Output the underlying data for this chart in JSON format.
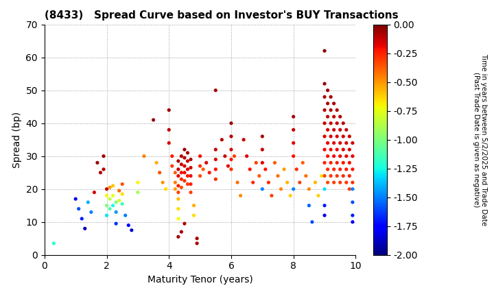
{
  "title": "(8433)   Spread Curve based on Investor's BUY Transactions",
  "xlabel": "Maturity Tenor (years)",
  "ylabel": "Spread (bp)",
  "xlim": [
    0,
    10
  ],
  "ylim": [
    0,
    70
  ],
  "xticks": [
    0,
    2,
    4,
    6,
    8,
    10
  ],
  "yticks": [
    0,
    10,
    20,
    30,
    40,
    50,
    60,
    70
  ],
  "cbar_min": -2.0,
  "cbar_max": 0.0,
  "cbar_ticks": [
    0.0,
    -0.25,
    -0.5,
    -0.75,
    -1.0,
    -1.25,
    -1.5,
    -1.75,
    -2.0
  ],
  "cbar_label": "Time in years between 5/2/2025 and Trade Date\n(Past Trade Date is given as negative)",
  "points": [
    [
      0.3,
      3.5,
      -1.2
    ],
    [
      1.0,
      17.0,
      -1.8
    ],
    [
      1.1,
      14.0,
      -1.6
    ],
    [
      1.2,
      11.0,
      -1.7
    ],
    [
      1.3,
      8.0,
      -1.9
    ],
    [
      1.4,
      16.0,
      -1.4
    ],
    [
      1.5,
      13.0,
      -1.5
    ],
    [
      1.6,
      19.0,
      -0.15
    ],
    [
      1.7,
      28.0,
      -0.05
    ],
    [
      1.8,
      25.0,
      -0.08
    ],
    [
      1.9,
      30.0,
      -0.05
    ],
    [
      1.9,
      26.0,
      -0.1
    ],
    [
      2.0,
      20.0,
      -0.12
    ],
    [
      2.0,
      18.0,
      -0.7
    ],
    [
      2.0,
      15.0,
      -1.0
    ],
    [
      2.0,
      12.0,
      -1.3
    ],
    [
      2.1,
      20.5,
      -0.5
    ],
    [
      2.1,
      17.0,
      -0.85
    ],
    [
      2.1,
      14.0,
      -1.1
    ],
    [
      2.2,
      21.0,
      -0.6
    ],
    [
      2.2,
      18.0,
      -0.75
    ],
    [
      2.2,
      15.0,
      -1.25
    ],
    [
      2.3,
      16.0,
      -1.0
    ],
    [
      2.3,
      13.0,
      -1.45
    ],
    [
      2.3,
      9.5,
      -1.65
    ],
    [
      2.4,
      19.5,
      -0.4
    ],
    [
      2.4,
      16.5,
      -0.8
    ],
    [
      2.5,
      21.5,
      -0.35
    ],
    [
      2.5,
      18.5,
      -0.65
    ],
    [
      2.5,
      15.5,
      -1.15
    ],
    [
      2.6,
      12.0,
      -1.5
    ],
    [
      2.7,
      9.0,
      -1.75
    ],
    [
      2.8,
      7.5,
      -1.85
    ],
    [
      3.0,
      22.0,
      -0.7
    ],
    [
      3.0,
      19.0,
      -0.9
    ],
    [
      3.2,
      30.0,
      -0.45
    ],
    [
      3.5,
      41.0,
      -0.05
    ],
    [
      3.6,
      28.0,
      -0.55
    ],
    [
      3.7,
      25.0,
      -0.35
    ],
    [
      3.8,
      22.0,
      -0.5
    ],
    [
      3.9,
      20.0,
      -0.65
    ],
    [
      4.0,
      44.0,
      -0.05
    ],
    [
      4.0,
      38.0,
      -0.1
    ],
    [
      4.0,
      34.0,
      -0.15
    ],
    [
      4.1,
      30.0,
      -0.22
    ],
    [
      4.1,
      27.0,
      -0.3
    ],
    [
      4.2,
      25.0,
      -0.38
    ],
    [
      4.2,
      22.0,
      -0.45
    ],
    [
      4.2,
      20.0,
      -0.52
    ],
    [
      4.3,
      28.5,
      -0.07
    ],
    [
      4.3,
      26.0,
      -0.12
    ],
    [
      4.3,
      24.0,
      -0.18
    ],
    [
      4.3,
      21.0,
      -0.25
    ],
    [
      4.3,
      19.0,
      -0.32
    ],
    [
      4.3,
      17.0,
      -0.58
    ],
    [
      4.3,
      14.0,
      -0.65
    ],
    [
      4.3,
      11.0,
      -0.72
    ],
    [
      4.3,
      5.5,
      -0.07
    ],
    [
      4.4,
      30.0,
      -0.08
    ],
    [
      4.4,
      27.5,
      -0.14
    ],
    [
      4.4,
      25.0,
      -0.2
    ],
    [
      4.4,
      23.0,
      -0.27
    ],
    [
      4.4,
      20.5,
      -0.35
    ],
    [
      4.4,
      7.0,
      -0.06
    ],
    [
      4.5,
      32.0,
      -0.06
    ],
    [
      4.5,
      29.5,
      -0.1
    ],
    [
      4.5,
      27.0,
      -0.15
    ],
    [
      4.5,
      25.0,
      -0.2
    ],
    [
      4.5,
      22.5,
      -0.28
    ],
    [
      4.5,
      9.5,
      -0.08
    ],
    [
      4.6,
      31.0,
      -0.07
    ],
    [
      4.6,
      28.5,
      -0.12
    ],
    [
      4.6,
      26.0,
      -0.17
    ],
    [
      4.6,
      24.0,
      -0.23
    ],
    [
      4.6,
      21.5,
      -0.3
    ],
    [
      4.7,
      29.0,
      -0.09
    ],
    [
      4.7,
      26.5,
      -0.14
    ],
    [
      4.7,
      24.0,
      -0.19
    ],
    [
      4.7,
      21.5,
      -0.25
    ],
    [
      4.7,
      19.0,
      -0.32
    ],
    [
      4.8,
      15.0,
      -0.55
    ],
    [
      4.8,
      12.0,
      -0.65
    ],
    [
      4.9,
      5.0,
      -0.07
    ],
    [
      4.9,
      3.5,
      -0.08
    ],
    [
      5.0,
      30.0,
      -0.2
    ],
    [
      5.0,
      27.0,
      -0.27
    ],
    [
      5.0,
      24.0,
      -0.33
    ],
    [
      5.1,
      26.0,
      -0.38
    ],
    [
      5.2,
      28.0,
      -0.17
    ],
    [
      5.3,
      25.0,
      -0.22
    ],
    [
      5.5,
      32.0,
      -0.12
    ],
    [
      5.5,
      29.0,
      -0.17
    ],
    [
      5.5,
      26.0,
      -0.22
    ],
    [
      5.5,
      23.0,
      -0.28
    ],
    [
      5.5,
      50.0,
      -0.05
    ],
    [
      5.7,
      35.0,
      -0.1
    ],
    [
      5.8,
      30.0,
      -0.14
    ],
    [
      5.9,
      27.0,
      -0.18
    ],
    [
      6.0,
      40.0,
      -0.06
    ],
    [
      6.0,
      36.0,
      -0.1
    ],
    [
      6.0,
      32.0,
      -0.16
    ],
    [
      6.0,
      29.0,
      -0.22
    ],
    [
      6.0,
      26.0,
      -0.28
    ],
    [
      6.1,
      30.0,
      -0.32
    ],
    [
      6.2,
      22.0,
      -0.42
    ],
    [
      6.3,
      18.0,
      -0.48
    ],
    [
      6.4,
      35.0,
      -0.12
    ],
    [
      6.5,
      30.0,
      -0.17
    ],
    [
      6.6,
      26.0,
      -0.22
    ],
    [
      6.7,
      22.0,
      -0.27
    ],
    [
      6.8,
      28.0,
      -0.32
    ],
    [
      6.9,
      24.0,
      -0.37
    ],
    [
      7.0,
      36.0,
      -0.07
    ],
    [
      7.0,
      32.0,
      -0.12
    ],
    [
      7.0,
      28.0,
      -0.17
    ],
    [
      7.0,
      20.0,
      -1.5
    ],
    [
      7.1,
      26.0,
      -0.22
    ],
    [
      7.2,
      22.0,
      -0.27
    ],
    [
      7.3,
      18.0,
      -0.32
    ],
    [
      7.4,
      28.0,
      -0.37
    ],
    [
      7.5,
      24.0,
      -0.42
    ],
    [
      7.6,
      20.0,
      -0.47
    ],
    [
      7.7,
      26.0,
      -0.52
    ],
    [
      7.8,
      22.0,
      -0.57
    ],
    [
      7.9,
      18.0,
      -0.62
    ],
    [
      8.0,
      42.0,
      -0.07
    ],
    [
      8.0,
      38.0,
      -0.12
    ],
    [
      8.0,
      34.0,
      -0.17
    ],
    [
      8.0,
      30.0,
      -0.22
    ],
    [
      8.0,
      20.0,
      -1.5
    ],
    [
      8.1,
      26.0,
      -0.27
    ],
    [
      8.2,
      22.0,
      -0.32
    ],
    [
      8.3,
      28.0,
      -0.37
    ],
    [
      8.4,
      24.0,
      -0.42
    ],
    [
      8.5,
      20.0,
      -0.47
    ],
    [
      8.5,
      15.0,
      -1.55
    ],
    [
      8.6,
      10.0,
      -1.6
    ],
    [
      8.7,
      22.0,
      -0.57
    ],
    [
      8.8,
      18.0,
      -0.62
    ],
    [
      8.9,
      24.0,
      -0.67
    ],
    [
      9.0,
      62.0,
      -0.02
    ],
    [
      9.0,
      52.0,
      -0.05
    ],
    [
      9.0,
      48.0,
      -0.08
    ],
    [
      9.0,
      44.0,
      -0.1
    ],
    [
      9.0,
      40.0,
      -0.13
    ],
    [
      9.0,
      36.0,
      -0.16
    ],
    [
      9.0,
      32.0,
      -0.2
    ],
    [
      9.0,
      28.0,
      -0.25
    ],
    [
      9.0,
      24.0,
      -0.32
    ],
    [
      9.0,
      20.0,
      -1.3
    ],
    [
      9.0,
      15.0,
      -1.7
    ],
    [
      9.0,
      12.0,
      -1.8
    ],
    [
      9.1,
      50.0,
      -0.06
    ],
    [
      9.1,
      46.0,
      -0.09
    ],
    [
      9.1,
      42.0,
      -0.12
    ],
    [
      9.1,
      38.0,
      -0.15
    ],
    [
      9.1,
      34.0,
      -0.18
    ],
    [
      9.1,
      30.0,
      -0.22
    ],
    [
      9.1,
      26.0,
      -0.27
    ],
    [
      9.1,
      22.0,
      -0.33
    ],
    [
      9.2,
      48.0,
      -0.07
    ],
    [
      9.2,
      44.0,
      -0.1
    ],
    [
      9.2,
      40.0,
      -0.13
    ],
    [
      9.2,
      36.0,
      -0.16
    ],
    [
      9.2,
      32.0,
      -0.2
    ],
    [
      9.2,
      28.0,
      -0.25
    ],
    [
      9.2,
      24.0,
      -0.3
    ],
    [
      9.3,
      46.0,
      -0.08
    ],
    [
      9.3,
      42.0,
      -0.11
    ],
    [
      9.3,
      38.0,
      -0.14
    ],
    [
      9.3,
      34.0,
      -0.17
    ],
    [
      9.3,
      30.0,
      -0.21
    ],
    [
      9.3,
      26.0,
      -0.26
    ],
    [
      9.3,
      22.0,
      -0.32
    ],
    [
      9.4,
      44.0,
      -0.09
    ],
    [
      9.4,
      40.0,
      -0.12
    ],
    [
      9.4,
      36.0,
      -0.15
    ],
    [
      9.4,
      32.0,
      -0.19
    ],
    [
      9.4,
      28.0,
      -0.24
    ],
    [
      9.4,
      24.0,
      -0.29
    ],
    [
      9.5,
      42.0,
      -0.1
    ],
    [
      9.5,
      38.0,
      -0.13
    ],
    [
      9.5,
      34.0,
      -0.16
    ],
    [
      9.5,
      30.0,
      -0.2
    ],
    [
      9.5,
      26.0,
      -0.25
    ],
    [
      9.5,
      22.0,
      -0.3
    ],
    [
      9.6,
      40.0,
      -0.11
    ],
    [
      9.6,
      36.0,
      -0.14
    ],
    [
      9.6,
      32.0,
      -0.17
    ],
    [
      9.6,
      28.0,
      -0.22
    ],
    [
      9.6,
      24.0,
      -0.27
    ],
    [
      9.7,
      38.0,
      -0.12
    ],
    [
      9.7,
      34.0,
      -0.15
    ],
    [
      9.7,
      30.0,
      -0.19
    ],
    [
      9.7,
      26.0,
      -0.24
    ],
    [
      9.7,
      22.0,
      -0.29
    ],
    [
      9.8,
      36.0,
      -0.13
    ],
    [
      9.8,
      32.0,
      -0.16
    ],
    [
      9.8,
      28.0,
      -0.21
    ],
    [
      9.8,
      24.0,
      -0.26
    ],
    [
      9.8,
      20.0,
      -0.31
    ],
    [
      9.9,
      34.0,
      -0.14
    ],
    [
      9.9,
      30.0,
      -0.18
    ],
    [
      9.9,
      26.0,
      -0.23
    ],
    [
      9.9,
      22.0,
      -0.28
    ],
    [
      9.9,
      20.0,
      -1.5
    ],
    [
      9.9,
      16.0,
      -1.6
    ],
    [
      9.9,
      12.0,
      -1.7
    ],
    [
      9.9,
      10.0,
      -1.8
    ]
  ]
}
